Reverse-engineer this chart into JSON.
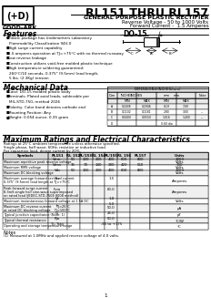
{
  "title": "RL151 THRU RL157",
  "subtitle1": "GENERAL PURPOSE PLASTIC RECTIFIER",
  "subtitle2": "Reverse Voltage - 50 to 1000 Volts",
  "subtitle3": "Forward Current -  1.5 Amperes",
  "company": "GOOD-ARK",
  "package": "DO-15",
  "features_title": "Features",
  "features": [
    [
      "bullet",
      "Plastic package has Underwriters Laboratory"
    ],
    [
      "cont",
      "  Flammability Classification 94V-0"
    ],
    [
      "bullet",
      "High surge current capability"
    ],
    [
      "bullet",
      "1.5 amperes operation at TJ=+75°C with no thermal runaway"
    ],
    [
      "bullet",
      "Low reverse leakage"
    ],
    [
      "bullet",
      "Construction utilizes void-free molded plastic technique"
    ],
    [
      "bullet",
      "High temperature soldering guaranteed:"
    ],
    [
      "cont",
      "  260°C/10 seconds, 0.375\" (9.5mm) lead length,"
    ],
    [
      "cont",
      "  5 lbs. (2.3Kg) tension"
    ]
  ],
  "mech_title": "Mechanical Data",
  "mech_items": [
    [
      "bullet",
      "Case: DO-15 molded plastic body"
    ],
    [
      "bullet",
      "Terminals: Plated axial leads, solderable per"
    ],
    [
      "cont",
      "  MIL-STD-750, method 2026"
    ],
    [
      "bullet",
      "Polarity: Color band denotes cathode end"
    ],
    [
      "bullet",
      "Mounting Position: Any"
    ],
    [
      "bullet",
      "Weight: 0.054 ounce, 0.35 gram"
    ]
  ],
  "ratings_title": "Maximum Ratings and Electrical Characteristics",
  "ratings_note1": "Ratings at 25°C ambient temperature unless otherwise specified.",
  "ratings_note2": "Single phase, half wave, 60Hz, resistive or inductive load.",
  "ratings_note3": "For capacitive load, derate current by 20%.",
  "col_headers": [
    "Symbols",
    "RL151",
    "RL 152",
    "RL/153",
    "RL 154",
    "RL/155",
    "RL 156",
    "RL157",
    "Units"
  ],
  "rows": [
    {
      "desc": "Maximum repetitive peak reverse voltage",
      "sym": "Vrrm",
      "vals": [
        "50",
        "100",
        "200",
        "400",
        "600",
        "800",
        "1000"
      ],
      "unit": "Volts"
    },
    {
      "desc": "Maximum RMS voltage",
      "sym": "Vrms",
      "vals": [
        "35",
        "70",
        "140",
        "280",
        "420",
        "560",
        "700"
      ],
      "unit": "Volts"
    },
    {
      "desc": "Maximum DC blocking voltage",
      "sym": "Vdc",
      "vals": [
        "50",
        "100",
        "200",
        "400",
        "600",
        "800",
        "1000"
      ],
      "unit": "Volts"
    },
    {
      "desc": "Maximum average forward rectified current\n0.375\" (9.5mm) lead length at TJ=+75°C",
      "sym": "Iav",
      "vals": [
        "",
        "",
        "",
        "1.5",
        "",
        "",
        ""
      ],
      "unit": "Amperes"
    },
    {
      "desc": "Peak forward surge current\n8.3mS single half sine-wave superimposed\non rated load (JEDEC-STD-750E 8008 method)",
      "sym": "Ifsm",
      "vals": [
        "",
        "",
        "",
        "60.0",
        "",
        "",
        ""
      ],
      "unit": "Amperes"
    },
    {
      "desc": "Maximum instantaneous forward voltage at 1.5A DC",
      "sym": "Vf",
      "vals": [
        "",
        "",
        "",
        "1.0",
        "",
        "",
        ""
      ],
      "unit": "Volts"
    },
    {
      "desc": "Maximum DC reverse current     TJ=25°C\nat rated DC blocking voltage    TJ=100°C",
      "sym": "Ir",
      "vals": [
        "",
        "",
        "",
        "5.0\n50.0",
        "",
        "",
        ""
      ],
      "unit": "μA"
    },
    {
      "desc": "Typical junction capacitance (Note: 1)",
      "sym": "Cj",
      "vals": [
        "",
        "",
        "",
        "25.0",
        "",
        "",
        ""
      ],
      "unit": "pF"
    },
    {
      "desc": "Typical thermal resistance",
      "sym": "Rja",
      "vals": [
        "",
        "",
        "",
        "50.0",
        "",
        "",
        ""
      ],
      "unit": "°C/W"
    },
    {
      "desc": "Operating and storage temperature range",
      "sym": "Tj, Tstg",
      "vals": [
        "",
        "",
        "",
        "-65 to +175",
        "",
        "",
        ""
      ],
      "unit": "°C"
    }
  ],
  "dim_table_header": "DIMENSIONS(INCHES/mm)",
  "dim_col_headers": [
    "Dim",
    "INCHES",
    "",
    "mm",
    "",
    "Note"
  ],
  "dim_col_subheaders": [
    "",
    "MIN",
    "MAX",
    "MIN",
    "MAX",
    ""
  ],
  "dim_data": [
    [
      "A",
      "0.2438",
      "0.2946",
      "6.19",
      "7.49",
      ""
    ],
    [
      "B",
      "0.1102",
      "0.1181",
      "2.80",
      "3.00",
      "---"
    ],
    [
      "C",
      "0.0400",
      "0.0550",
      "1.016",
      "1.400",
      "---"
    ],
    [
      "D",
      "",
      "",
      "0.60 dia",
      "",
      ""
    ]
  ],
  "note": "(1) Measured at 1.0MHz and applied reverse voltage of 4.0 volts.",
  "bg_color": "#ffffff",
  "text_color": "#000000"
}
